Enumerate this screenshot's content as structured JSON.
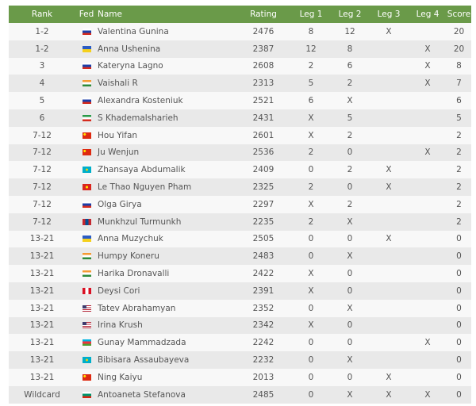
{
  "table": {
    "headers": {
      "rank": "Rank",
      "fed": "Fed",
      "name": "Name",
      "rating": "Rating",
      "leg1": "Leg 1",
      "leg2": "Leg 2",
      "leg3": "Leg 3",
      "leg4": "Leg 4",
      "score": "Score"
    },
    "header_color": "#6a9a49",
    "rows": [
      {
        "rank": "1-2",
        "fed": "flag-russia-icon",
        "name": "Valentina Gunina",
        "rating": "2476",
        "leg1": "8",
        "leg2": "12",
        "leg3": "X",
        "leg4": "",
        "score": "20"
      },
      {
        "rank": "1-2",
        "fed": "flag-ukraine-icon",
        "name": "Anna Ushenina",
        "rating": "2387",
        "leg1": "12",
        "leg2": "8",
        "leg3": "",
        "leg4": "X",
        "score": "20"
      },
      {
        "rank": "3",
        "fed": "flag-russia-icon",
        "name": "Kateryna Lagno",
        "rating": "2608",
        "leg1": "2",
        "leg2": "6",
        "leg3": "",
        "leg4": "X",
        "score": "8"
      },
      {
        "rank": "4",
        "fed": "flag-india-icon",
        "name": "Vaishali R",
        "rating": "2313",
        "leg1": "5",
        "leg2": "2",
        "leg3": "",
        "leg4": "X",
        "score": "7"
      },
      {
        "rank": "5",
        "fed": "flag-russia-icon",
        "name": "Alexandra Kosteniuk",
        "rating": "2521",
        "leg1": "6",
        "leg2": "X",
        "leg3": "",
        "leg4": "",
        "score": "6"
      },
      {
        "rank": "6",
        "fed": "flag-iran-icon",
        "name": "S Khademalsharieh",
        "rating": "2431",
        "leg1": "X",
        "leg2": "5",
        "leg3": "",
        "leg4": "",
        "score": "5"
      },
      {
        "rank": "7-12",
        "fed": "flag-china-icon",
        "name": "Hou Yifan",
        "rating": "2601",
        "leg1": "X",
        "leg2": "2",
        "leg3": "",
        "leg4": "",
        "score": "2"
      },
      {
        "rank": "7-12",
        "fed": "flag-china-icon",
        "name": "Ju Wenjun",
        "rating": "2536",
        "leg1": "2",
        "leg2": "0",
        "leg3": "",
        "leg4": "X",
        "score": "2"
      },
      {
        "rank": "7-12",
        "fed": "flag-kazakhstan-icon",
        "name": "Zhansaya Abdumalik",
        "rating": "2409",
        "leg1": "0",
        "leg2": "2",
        "leg3": "X",
        "leg4": "",
        "score": "2"
      },
      {
        "rank": "7-12",
        "fed": "flag-vietnam-icon",
        "name": "Le Thao Nguyen Pham",
        "rating": "2325",
        "leg1": "2",
        "leg2": "0",
        "leg3": "X",
        "leg4": "",
        "score": "2"
      },
      {
        "rank": "7-12",
        "fed": "flag-russia-icon",
        "name": "Olga Girya",
        "rating": "2297",
        "leg1": "X",
        "leg2": "2",
        "leg3": "",
        "leg4": "",
        "score": "2"
      },
      {
        "rank": "7-12",
        "fed": "flag-mongolia-icon",
        "name": "Munkhzul Turmunkh",
        "rating": "2235",
        "leg1": "2",
        "leg2": "X",
        "leg3": "",
        "leg4": "",
        "score": "2"
      },
      {
        "rank": "13-21",
        "fed": "flag-ukraine-icon",
        "name": "Anna Muzychuk",
        "rating": "2505",
        "leg1": "0",
        "leg2": "0",
        "leg3": "X",
        "leg4": "",
        "score": "0"
      },
      {
        "rank": "13-21",
        "fed": "flag-india-icon",
        "name": "Humpy Koneru",
        "rating": "2483",
        "leg1": "0",
        "leg2": "X",
        "leg3": "",
        "leg4": "",
        "score": "0"
      },
      {
        "rank": "13-21",
        "fed": "flag-india-icon",
        "name": "Harika Dronavalli",
        "rating": "2422",
        "leg1": "X",
        "leg2": "0",
        "leg3": "",
        "leg4": "",
        "score": "0"
      },
      {
        "rank": "13-21",
        "fed": "flag-peru-icon",
        "name": "Deysi Cori",
        "rating": "2391",
        "leg1": "X",
        "leg2": "0",
        "leg3": "",
        "leg4": "",
        "score": "0"
      },
      {
        "rank": "13-21",
        "fed": "flag-usa-icon",
        "name": "Tatev Abrahamyan",
        "rating": "2352",
        "leg1": "0",
        "leg2": "X",
        "leg3": "",
        "leg4": "",
        "score": "0"
      },
      {
        "rank": "13-21",
        "fed": "flag-usa-icon",
        "name": "Irina Krush",
        "rating": "2342",
        "leg1": "X",
        "leg2": "0",
        "leg3": "",
        "leg4": "",
        "score": "0"
      },
      {
        "rank": "13-21",
        "fed": "flag-azerbaijan-icon",
        "name": "Gunay Mammadzada",
        "rating": "2242",
        "leg1": "0",
        "leg2": "0",
        "leg3": "",
        "leg4": "X",
        "score": "0"
      },
      {
        "rank": "13-21",
        "fed": "flag-kazakhstan-icon",
        "name": "Bibisara Assaubayeva",
        "rating": "2232",
        "leg1": "0",
        "leg2": "X",
        "leg3": "",
        "leg4": "",
        "score": "0"
      },
      {
        "rank": "13-21",
        "fed": "flag-china-icon",
        "name": "Ning Kaiyu",
        "rating": "2013",
        "leg1": "0",
        "leg2": "0",
        "leg3": "X",
        "leg4": "",
        "score": "0"
      },
      {
        "rank": "Wildcard",
        "fed": "flag-bulgaria-icon",
        "name": "Antoaneta Stefanova",
        "rating": "2485",
        "leg1": "0",
        "leg2": "X",
        "leg3": "X",
        "leg4": "X",
        "score": "0"
      }
    ]
  }
}
